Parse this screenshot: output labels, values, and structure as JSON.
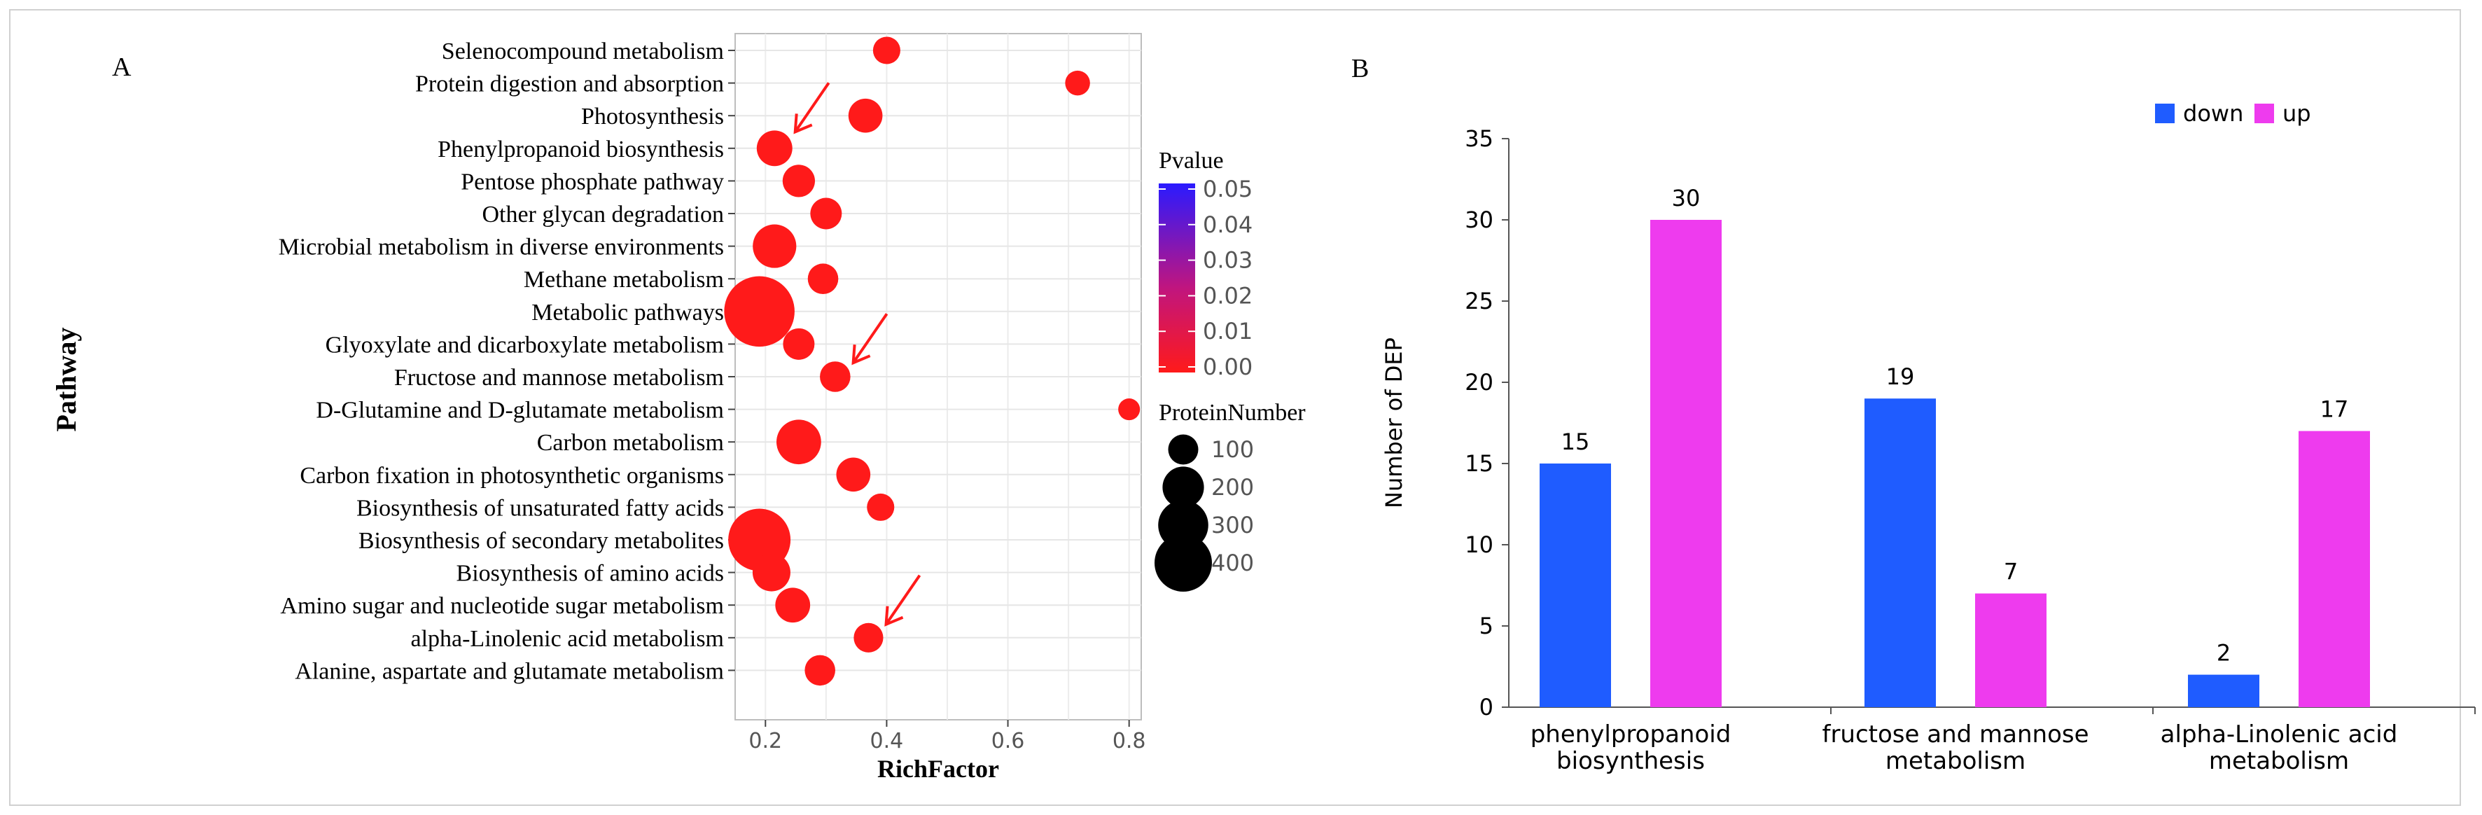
{
  "panel_a_label": "A",
  "panel_b_label": "B",
  "chart_data": [
    {
      "type": "scatter",
      "title": "",
      "xlabel": "RichFactor",
      "ylabel": "Pathway",
      "xlim": [
        0.15,
        0.82
      ],
      "xticks": [
        0.2,
        0.4,
        0.6,
        0.8
      ],
      "xtick_labels": [
        "0.2",
        "0.4",
        "0.6",
        "0.8"
      ],
      "grid": true,
      "pathways": [
        "Selenocompound metabolism",
        "Protein digestion and absorption",
        "Photosynthesis",
        "Phenylpropanoid biosynthesis",
        "Pentose phosphate pathway",
        "Other glycan degradation",
        "Microbial metabolism in diverse environments",
        "Methane metabolism",
        "Metabolic pathways",
        "Glyoxylate and dicarboxylate metabolism",
        "Fructose and mannose metabolism",
        "D-Glutamine and D-glutamate metabolism",
        "Carbon metabolism",
        "Carbon fixation in photosynthetic organisms",
        "Biosynthesis of unsaturated fatty acids",
        "Biosynthesis of secondary metabolites",
        "Biosynthesis of amino acids",
        "Amino sugar and nucleotide sugar metabolism",
        "alpha-Linolenic acid metabolism",
        "Alanine, aspartate and glutamate metabolism"
      ],
      "rich_factor": [
        0.4,
        0.715,
        0.365,
        0.215,
        0.255,
        0.3,
        0.215,
        0.295,
        0.19,
        0.255,
        0.315,
        0.8,
        0.255,
        0.345,
        0.39,
        0.19,
        0.21,
        0.245,
        0.37,
        0.29
      ],
      "protein_number": [
        35,
        25,
        70,
        80,
        60,
        55,
        140,
        50,
        470,
        55,
        50,
        15,
        150,
        70,
        35,
        350,
        95,
        75,
        45,
        50
      ],
      "pvalue": [
        0.0,
        0.0,
        0.0,
        0.0,
        0.0,
        0.0,
        0.0,
        0.0,
        0.0,
        0.0,
        0.0,
        0.0,
        0.0,
        0.0,
        0.0,
        0.0,
        0.0,
        0.0,
        0.0,
        0.0
      ],
      "arrows_at": [
        "Phenylpropanoid biosynthesis",
        "Fructose and mannose metabolism",
        "alpha-Linolenic acid metabolism"
      ],
      "legend_color": {
        "title": "Pvalue",
        "ticks": [
          "0.05",
          "0.04",
          "0.03",
          "0.02",
          "0.01",
          "0.00"
        ],
        "color_high": "#2a1aff",
        "color_low": "#ff1a1a"
      },
      "legend_size": {
        "title": "ProteinNumber",
        "values": [
          100,
          200,
          300,
          400
        ],
        "labels": [
          "100",
          "200",
          "300",
          "400"
        ]
      },
      "dot_color": "#ff1a1a",
      "arrow_color": "#ff1a1a"
    },
    {
      "type": "bar",
      "title": "",
      "xlabel": "",
      "ylabel": "Number of DEP",
      "ylim": [
        0,
        35
      ],
      "yticks": [
        0,
        5,
        10,
        15,
        20,
        25,
        30,
        35
      ],
      "ytick_labels": [
        "0",
        "5",
        "10",
        "15",
        "20",
        "25",
        "30",
        "35"
      ],
      "grid": false,
      "categories": [
        [
          "phenylpropanoid",
          "biosynthesis"
        ],
        [
          "fructose and mannose",
          "metabolism"
        ],
        [
          "alpha-Linolenic acid",
          "metabolism"
        ]
      ],
      "series": [
        {
          "name": "down",
          "color": "#1f5cff",
          "values": [
            15,
            19,
            2
          ],
          "labels": [
            "15",
            "19",
            "2"
          ]
        },
        {
          "name": "up",
          "color": "#ee3bee",
          "values": [
            30,
            7,
            17
          ],
          "labels": [
            "30",
            "7",
            "17"
          ]
        }
      ],
      "legend_position": "top-right"
    }
  ]
}
